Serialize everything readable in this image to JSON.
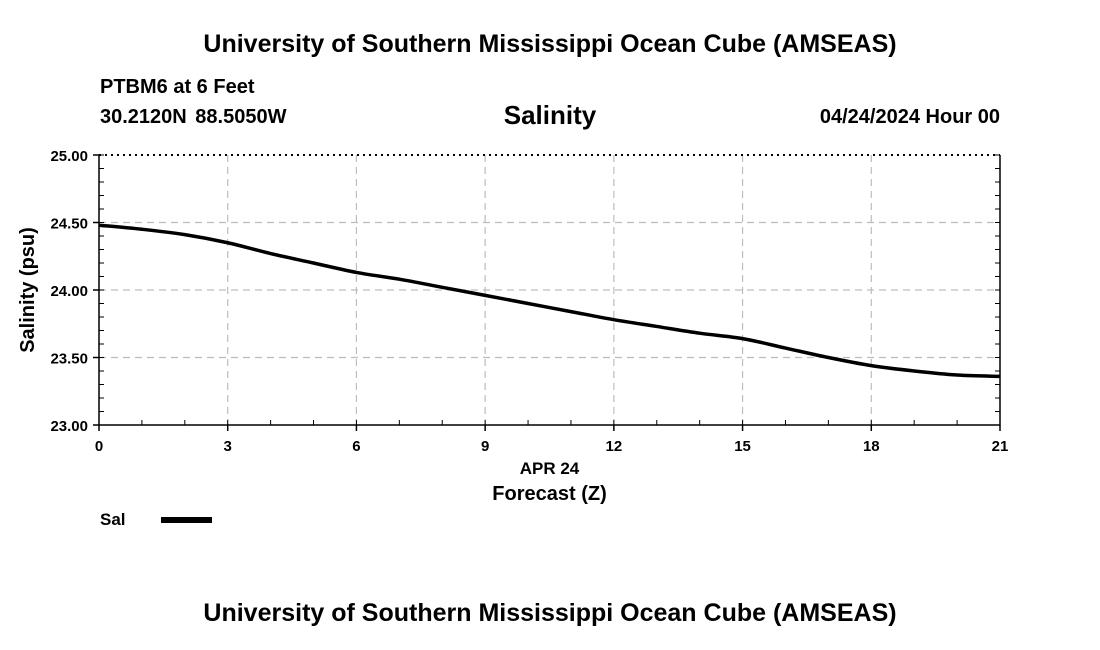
{
  "header": {
    "title": "University of Southern Mississippi Ocean Cube (AMSEAS)",
    "station": "PTBM6 at 6 Feet",
    "coords": "30.2120N  88.5050W",
    "variable": "Salinity",
    "datetime": "04/24/2024 Hour 00"
  },
  "footer": {
    "title": "University of Southern Mississippi Ocean Cube (AMSEAS)"
  },
  "legend": {
    "label": "Sal",
    "color": "#000000"
  },
  "chart_data": {
    "type": "line",
    "title": "Salinity",
    "xlabel": "Forecast (Z)",
    "xsublabel": "APR 24",
    "ylabel": "Salinity (psu)",
    "xlim": [
      0,
      21
    ],
    "ylim": [
      23.0,
      25.0
    ],
    "xticks": [
      0,
      3,
      6,
      9,
      12,
      15,
      18,
      21
    ],
    "yticks": [
      23.0,
      23.5,
      24.0,
      24.5,
      25.0
    ],
    "ytick_labels": [
      "23.00",
      "23.50",
      "24.00",
      "24.50",
      "25.00"
    ],
    "grid": true,
    "series": [
      {
        "name": "Sal",
        "x": [
          0,
          1,
          2,
          3,
          4,
          5,
          6,
          7,
          8,
          9,
          10,
          11,
          12,
          13,
          14,
          15,
          16,
          17,
          18,
          19,
          20,
          21
        ],
        "values": [
          24.48,
          24.45,
          24.41,
          24.35,
          24.27,
          24.2,
          24.13,
          24.08,
          24.02,
          23.96,
          23.9,
          23.84,
          23.78,
          23.73,
          23.68,
          23.64,
          23.57,
          23.5,
          23.44,
          23.4,
          23.37,
          23.36
        ]
      }
    ]
  }
}
